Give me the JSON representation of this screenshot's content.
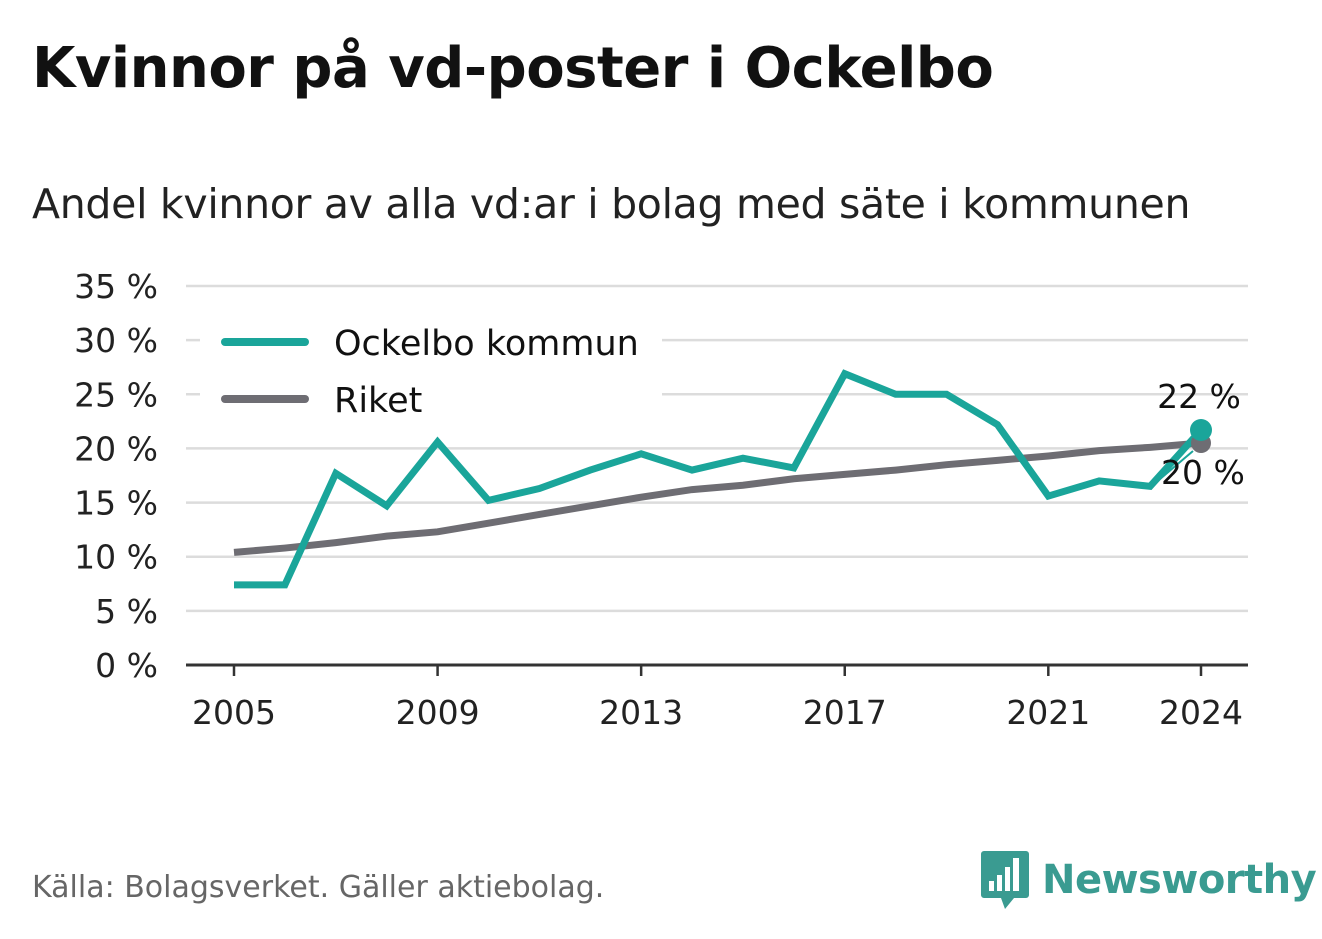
{
  "title": "Kvinnor på vd-poster i Ockelbo",
  "subtitle": "Andel kvinnor av alla vd:ar i bolag med säte i kommunen",
  "source": "Källa: Bolagsverket. Gäller aktiebolag.",
  "brand": {
    "name": "Newsworthy",
    "logo_icon": "chart-speech-bubble-icon",
    "color": "#3a9b91"
  },
  "chart_data": {
    "type": "line",
    "x": [
      2005,
      2006,
      2007,
      2008,
      2009,
      2010,
      2011,
      2012,
      2013,
      2014,
      2015,
      2016,
      2017,
      2018,
      2019,
      2020,
      2021,
      2022,
      2023,
      2024
    ],
    "x_ticks": [
      "2005",
      "2009",
      "2013",
      "2017",
      "2021",
      "2024"
    ],
    "y_ticks": [
      "0 %",
      "5 %",
      "10 %",
      "15 %",
      "20 %",
      "25 %",
      "30 %",
      "35 %"
    ],
    "ylim": [
      0,
      35
    ],
    "grid": true,
    "legend_position": "top-left",
    "series": [
      {
        "name": "Ockelbo kommun",
        "color": "#1aa59a",
        "values": [
          7.4,
          7.4,
          17.7,
          14.7,
          20.6,
          15.2,
          16.3,
          18.0,
          19.5,
          18.0,
          19.1,
          18.2,
          26.9,
          25.0,
          25.0,
          22.2,
          15.6,
          17.0,
          16.5,
          21.7
        ],
        "end_label": "22 %"
      },
      {
        "name": "Riket",
        "color": "#6e6d73",
        "values": [
          10.4,
          10.8,
          11.3,
          11.9,
          12.3,
          13.1,
          13.9,
          14.7,
          15.5,
          16.2,
          16.6,
          17.2,
          17.6,
          18.0,
          18.5,
          18.9,
          19.3,
          19.8,
          20.1,
          20.5
        ],
        "end_label": "20 %"
      }
    ]
  }
}
